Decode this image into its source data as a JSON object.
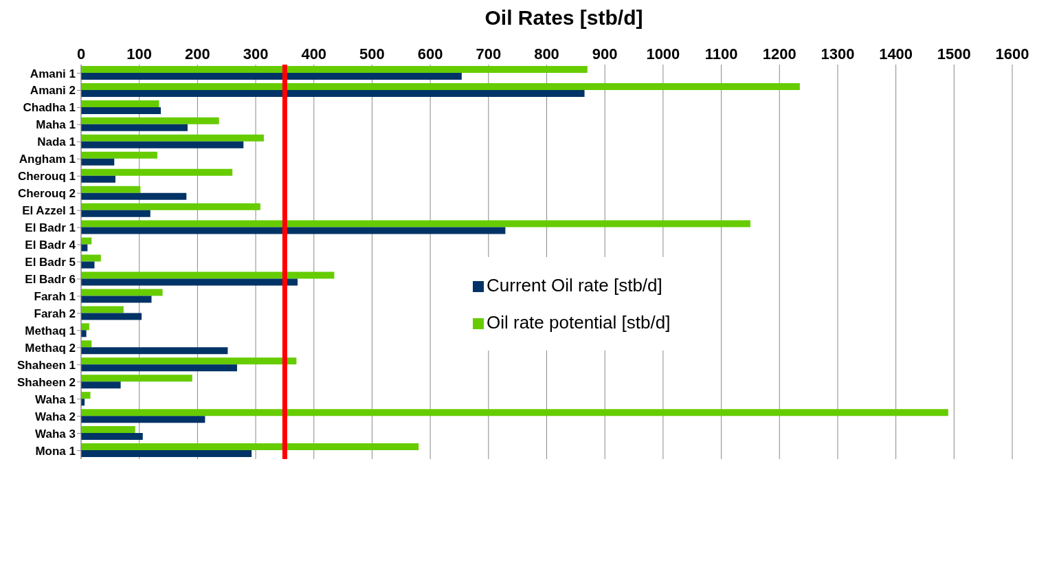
{
  "chart_data": {
    "type": "bar",
    "orientation": "horizontal",
    "title": "Oil Rates [stb/d]",
    "categories": [
      "Amani 1",
      "Amani 2",
      "Chadha 1",
      "Maha 1",
      "Nada 1",
      "Angham 1",
      "Cherouq 1",
      "Cherouq 2",
      "El Azzel 1",
      "El Badr 1",
      "El Badr 4",
      "El Badr 5",
      "El Badr 6",
      "Farah 1",
      "Farah 2",
      "Methaq 1",
      "Methaq 2",
      "Shaheen 1",
      "Shaheen 2",
      "Waha 1",
      "Waha 2",
      "Waha 3",
      "Mona 1"
    ],
    "series": [
      {
        "name": "Oil rate potential [stb/d]",
        "color": "#66cc00",
        "values": [
          870,
          1235,
          134,
          237,
          314,
          131,
          260,
          102,
          308,
          1150,
          18,
          34,
          435,
          140,
          73,
          14,
          18,
          370,
          191,
          16,
          1490,
          93,
          580
        ]
      },
      {
        "name": "Current Oil rate [stb/d]",
        "color": "#003366",
        "values": [
          654,
          865,
          137,
          183,
          279,
          57,
          59,
          181,
          119,
          729,
          11,
          23,
          372,
          121,
          104,
          9,
          252,
          268,
          68,
          6,
          213,
          106,
          293
        ]
      }
    ],
    "xlim": [
      0,
      1600
    ],
    "xticks": [
      0,
      100,
      200,
      300,
      400,
      500,
      600,
      700,
      800,
      900,
      1000,
      1100,
      1200,
      1300,
      1400,
      1500,
      1600
    ],
    "ref_lines": [
      {
        "axis": "x",
        "value": 350,
        "color": "#ff0000"
      }
    ],
    "grid": "x",
    "legend": "center"
  }
}
